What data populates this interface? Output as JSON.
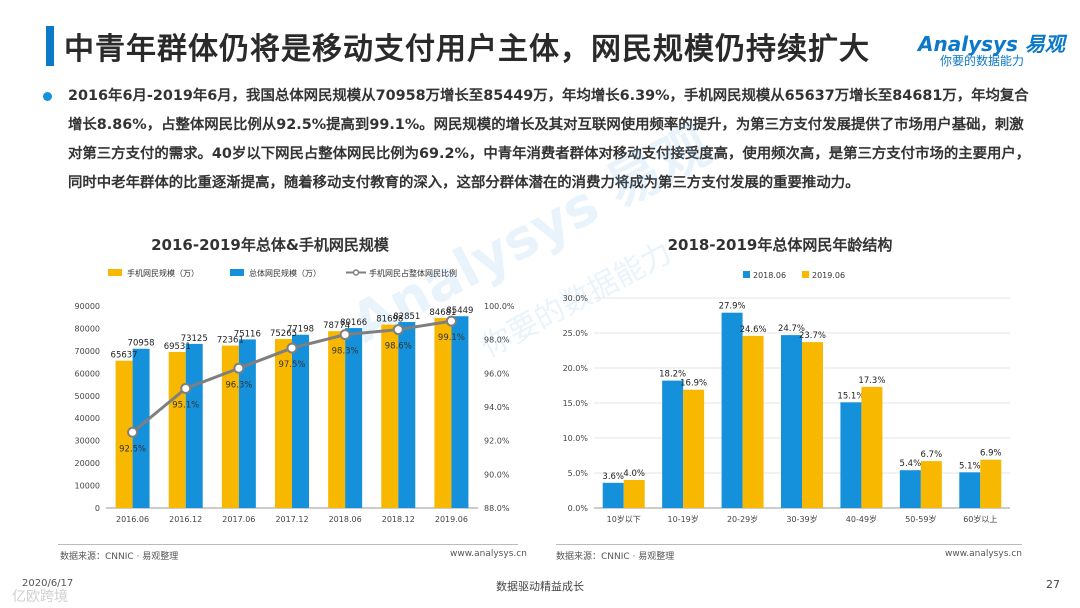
{
  "header": {
    "title": "中青年群体仍将是移动支付用户主体，网民规模仍持续扩大",
    "logo_main": "Analysys 易观",
    "logo_sub": "你要的数据能力"
  },
  "summary": "2016年6月-2019年6月，我国总体网民规模从70958万增长至85449万，年均增长6.39%，手机网民规模从65637万增长至84681万，年均复合增长8.86%，占整体网民比例从92.5%提高到99.1%。网民规模的增长及其对互联网使用频率的提升，为第三方支付发展提供了市场用户基础，刺激对第三方支付的需求。40岁以下网民占整体网民比例为69.2%，中青年消费者群体对移动支付接受度高，使用频次高，是第三方支付市场的主要用户，同时中老年群体的比重逐渐提高，随着移动支付教育的深入，这部分群体潜在的消费力将成为第三方支付发展的重要推动力。",
  "watermark": {
    "main": "Analysys 易观",
    "sub": "你要的数据能力"
  },
  "colors": {
    "accent": "#0b78c9",
    "mobile": "#f9b800",
    "total": "#1591dc",
    "ratio": "#7f7f7f",
    "y2018": "#1591dc",
    "y2019": "#f9b800"
  },
  "chart_data": [
    {
      "type": "bar",
      "title": "2016-2019年总体&手机网民规模",
      "categories": [
        "2016.06",
        "2016.12",
        "2017.06",
        "2017.12",
        "2018.06",
        "2018.12",
        "2019.06"
      ],
      "series": [
        {
          "name": "手机网民规模（万）",
          "kind": "bar",
          "values": [
            65637,
            69531,
            72361,
            75265,
            78774,
            81698,
            84681
          ],
          "labels": [
            "65637",
            "69531",
            "72361",
            "75265",
            "78774",
            "81698",
            "84681"
          ]
        },
        {
          "name": "总体网民规模（万）",
          "kind": "bar",
          "values": [
            70958,
            73125,
            75116,
            77198,
            80166,
            82851,
            85449
          ],
          "labels": [
            "70958",
            "73125",
            "75116",
            "77198",
            "80166",
            "82851",
            "85449"
          ]
        },
        {
          "name": "手机网民占整体网民比例",
          "kind": "line",
          "axis": "right",
          "values": [
            92.5,
            95.1,
            96.3,
            97.5,
            98.3,
            98.6,
            99.1
          ],
          "labels": [
            "92.5%",
            "95.1%",
            "96.3%",
            "97.5%",
            "98.3%",
            "98.6%",
            "99.1%"
          ]
        }
      ],
      "ylim": [
        0,
        90000
      ],
      "yticks": [
        "0",
        "10000",
        "20000",
        "30000",
        "40000",
        "50000",
        "60000",
        "70000",
        "80000",
        "90000"
      ],
      "y2lim": [
        88,
        100
      ],
      "y2ticks": [
        "88.0%",
        "90.0%",
        "92.0%",
        "94.0%",
        "96.0%",
        "98.0%",
        "100.0%"
      ],
      "legend": "top"
    },
    {
      "type": "bar",
      "title": "2018-2019年总体网民年龄结构",
      "categories": [
        "10岁以下",
        "10-19岁",
        "20-29岁",
        "30-39岁",
        "40-49岁",
        "50-59岁",
        "60岁以上"
      ],
      "series": [
        {
          "name": "2018.06",
          "values": [
            3.6,
            18.2,
            27.9,
            24.7,
            15.1,
            5.4,
            5.1
          ],
          "labels": [
            "3.6%",
            "18.2%",
            "27.9%",
            "24.7%",
            "15.1%",
            "5.4%",
            "5.1%"
          ]
        },
        {
          "name": "2019.06",
          "values": [
            4.0,
            16.9,
            24.6,
            23.7,
            17.3,
            6.7,
            6.9
          ],
          "labels": [
            "4.0%",
            "16.9%",
            "24.6%",
            "23.7%",
            "17.3%",
            "6.7%",
            "6.9%"
          ]
        }
      ],
      "ylim": [
        0,
        30
      ],
      "yticks": [
        "0.0%",
        "5.0%",
        "10.0%",
        "15.0%",
        "20.0%",
        "25.0%",
        "30.0%"
      ],
      "legend": "top"
    }
  ],
  "sources": {
    "left": "数据来源：CNNIC · 易观整理",
    "right": "数据来源：CNNIC · 易观整理",
    "site_left": "www.analysys.cn",
    "site_right": "www.analysys.cn"
  },
  "footer": {
    "date": "2020/6/17",
    "center": "数据驱动精益成长",
    "page": "27",
    "brand": "亿欧跨境"
  }
}
